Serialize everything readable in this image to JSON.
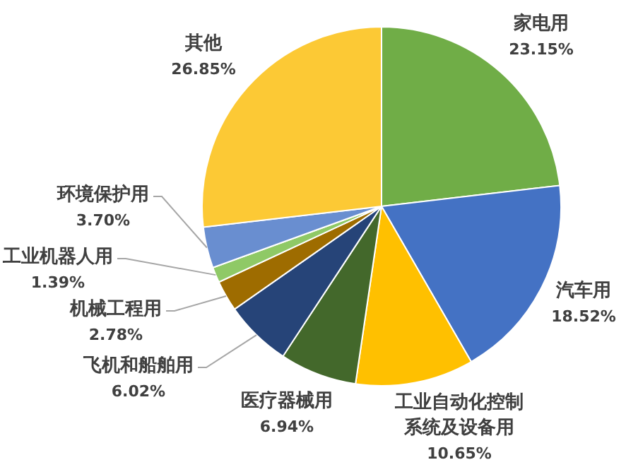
{
  "chart_data": {
    "type": "pie",
    "categories": [
      "家电用",
      "汽车用",
      "工业自动化控制系统及设备用",
      "医疗器械用",
      "飞机和船舶用",
      "机械工程用",
      "工业机器人用",
      "环境保护用",
      "其他"
    ],
    "values": [
      23.15,
      18.52,
      10.65,
      6.94,
      6.02,
      2.78,
      1.39,
      3.7,
      26.85
    ],
    "value_labels": [
      "23.15%",
      "18.52%",
      "10.65%",
      "6.94%",
      "6.02%",
      "2.78%",
      "1.39%",
      "3.70%",
      "26.85%"
    ],
    "colors": [
      "#70ad47",
      "#4472c4",
      "#ffc000",
      "#43682b",
      "#264478",
      "#9e6c00",
      "#8fc966",
      "#698ed0",
      "#fcc935"
    ]
  }
}
